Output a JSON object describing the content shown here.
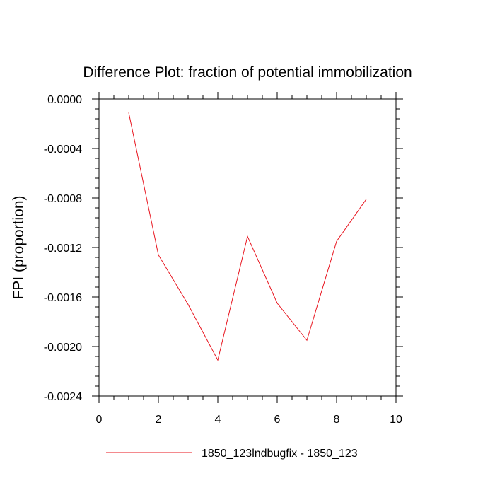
{
  "chart_data": {
    "type": "line",
    "title": "Difference Plot: fraction of potential immobilization",
    "xlabel": "",
    "ylabel": "FPI  (proportion)",
    "xlim": [
      0,
      10
    ],
    "ylim": [
      -0.0024,
      0.0
    ],
    "x_ticks": [
      0,
      2,
      4,
      6,
      8,
      10
    ],
    "x_tick_labels": [
      "0",
      "2",
      "4",
      "6",
      "8",
      "10"
    ],
    "y_ticks": [
      0.0,
      -0.0004,
      -0.0008,
      -0.0012,
      -0.0016,
      -0.002,
      -0.0024
    ],
    "y_tick_labels": [
      "0.0000",
      "-0.0004",
      "-0.0008",
      "-0.0012",
      "-0.0016",
      "-0.0020",
      "-0.0024"
    ],
    "grid": false,
    "legend_position": "bottom-center",
    "series": [
      {
        "name": "1850_123lndbugfix - 1850_123",
        "color": "#e8141e",
        "x": [
          1,
          2,
          3,
          4,
          5,
          6,
          7,
          8,
          9
        ],
        "y": [
          -0.00011,
          -0.00126,
          -0.00166,
          -0.00211,
          -0.00111,
          -0.00165,
          -0.00195,
          -0.00115,
          -0.00081
        ]
      }
    ]
  }
}
